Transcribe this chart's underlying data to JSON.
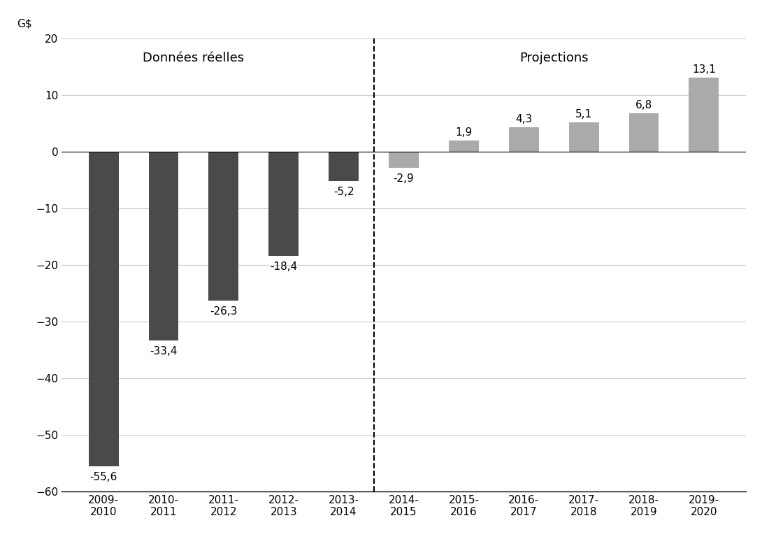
{
  "categories": [
    "2009-\n2010",
    "2010-\n2011",
    "2011-\n2012",
    "2012-\n2013",
    "2013-\n2014",
    "2014-\n2015",
    "2015-\n2016",
    "2016-\n2017",
    "2017-\n2018",
    "2018-\n2019",
    "2019-\n2020"
  ],
  "values": [
    -55.6,
    -33.4,
    -26.3,
    -18.4,
    -5.2,
    -2.9,
    1.9,
    4.3,
    5.1,
    6.8,
    13.1
  ],
  "labels": [
    "-55,6",
    "-33,4",
    "-26,3",
    "-18,4",
    "-5,2",
    "-2,9",
    "1,9",
    "4,3",
    "5,1",
    "6,8",
    "13,1"
  ],
  "bar_color_dark": "#4a4a4a",
  "bar_color_light": "#aaaaaa",
  "split_index": 5,
  "ylim": [
    -60,
    20
  ],
  "yticks": [
    -60,
    -50,
    -40,
    -30,
    -20,
    -10,
    0,
    10,
    20
  ],
  "dashed_line_x": 4.5,
  "label_donnees": "Données réelles",
  "label_projections": "Projections",
  "background_color": "#ffffff",
  "grid_color": "#cccccc",
  "bar_width": 0.5
}
